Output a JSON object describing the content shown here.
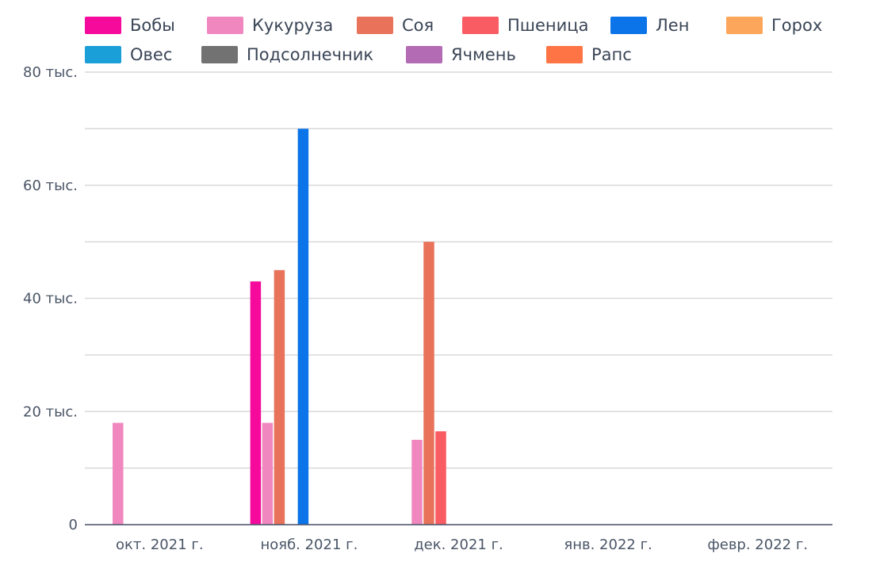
{
  "chart_data": {
    "type": "bar",
    "categories": [
      "окт. 2021 г.",
      "нояб. 2021 г.",
      "дек. 2021 г.",
      "янв. 2022 г.",
      "февр. 2022 г."
    ],
    "ylim": [
      0,
      80000
    ],
    "yticks": [
      {
        "value": 0,
        "label": "0"
      },
      {
        "value": 20000,
        "label": "20 тыс."
      },
      {
        "value": 40000,
        "label": "40 тыс."
      },
      {
        "value": 60000,
        "label": "60 тыс."
      },
      {
        "value": 80000,
        "label": "80 тыс."
      }
    ],
    "grid": true,
    "legend_position": "top",
    "series": [
      {
        "name": "Бобы",
        "color": "#f50a9b",
        "values": [
          0,
          43000,
          0,
          0,
          0
        ]
      },
      {
        "name": "Кукуруза",
        "color": "#f088bf",
        "values": [
          18000,
          18000,
          15000,
          0,
          0
        ]
      },
      {
        "name": "Соя",
        "color": "#e8735a",
        "values": [
          0,
          45000,
          50000,
          0,
          0
        ]
      },
      {
        "name": "Пшеница",
        "color": "#f95c62",
        "values": [
          0,
          0,
          16500,
          0,
          0
        ]
      },
      {
        "name": "Лен",
        "color": "#0a74e8",
        "values": [
          0,
          70000,
          0,
          0,
          0
        ]
      },
      {
        "name": "Горох",
        "color": "#fba65a",
        "values": [
          0,
          0,
          0,
          0,
          0
        ]
      },
      {
        "name": "Овес",
        "color": "#1b9fd8",
        "values": [
          0,
          0,
          0,
          0,
          0
        ]
      },
      {
        "name": "Подсолнечник",
        "color": "#727272",
        "values": [
          0,
          0,
          0,
          0,
          0
        ]
      },
      {
        "name": "Ячмень",
        "color": "#b36bb3",
        "values": [
          0,
          0,
          0,
          0,
          0
        ]
      },
      {
        "name": "Рапс",
        "color": "#ff7444",
        "values": [
          0,
          0,
          0,
          0,
          0
        ]
      }
    ]
  }
}
